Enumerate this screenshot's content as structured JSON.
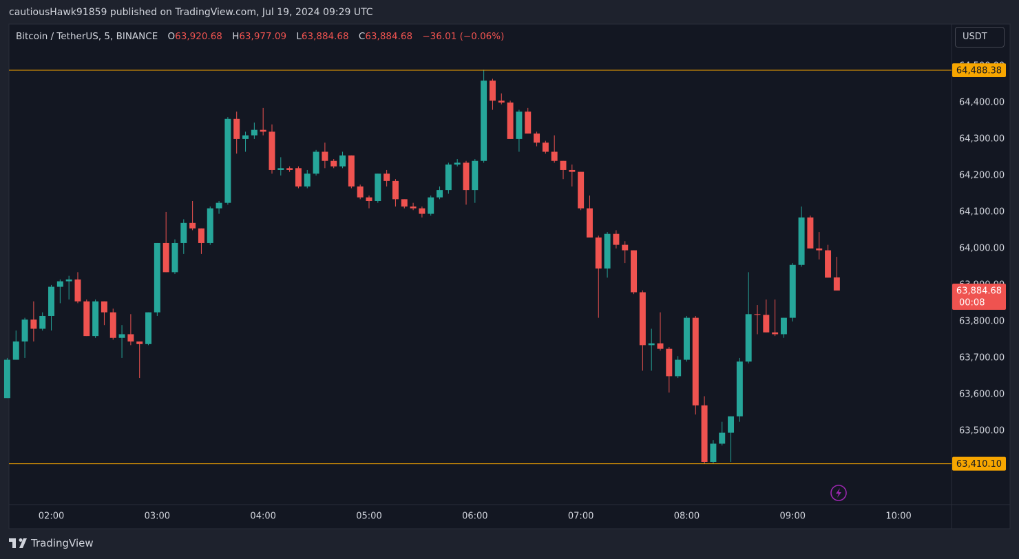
{
  "header": {
    "byline": "cautiousHawk91859 published on TradingView.com, Jul 19, 2024 09:29 UTC"
  },
  "legend": {
    "symbol": "Bitcoin / TetherUS, 5, BINANCE",
    "open_key": "O",
    "open": "63,920.68",
    "high_key": "H",
    "high": "63,977.09",
    "low_key": "L",
    "low": "63,884.68",
    "close_key": "C",
    "close": "63,884.68",
    "change": "−36.01 (−0.06%)"
  },
  "currency_button": "USDT",
  "footer": {
    "brand": "TradingView"
  },
  "chart_data": {
    "type": "candlestick",
    "up_color": "#26a69a",
    "down_color": "#ef5350",
    "grid": true,
    "x": [
      95,
      100,
      105,
      110,
      115,
      120,
      125,
      130,
      135,
      140,
      145,
      150,
      155,
      160,
      165,
      170,
      175,
      180,
      185,
      190,
      195,
      200,
      205,
      210,
      215,
      220,
      225,
      230,
      235,
      240,
      245,
      250,
      255,
      260,
      265,
      270,
      275,
      280,
      285,
      290,
      295,
      300,
      305,
      310,
      315,
      320,
      325,
      330,
      335,
      340,
      345,
      350,
      355,
      360,
      365,
      370,
      375,
      380,
      385,
      390,
      395,
      400,
      405,
      410,
      415,
      420,
      425,
      430,
      435,
      440,
      445,
      450,
      455,
      460,
      465,
      470,
      475,
      480,
      485,
      490,
      495,
      500,
      505,
      510,
      515,
      520,
      525,
      530,
      535,
      540,
      545,
      550,
      555,
      560,
      565
    ],
    "open": [
      63590,
      63695,
      63745,
      63805,
      63780,
      63815,
      63895,
      63910,
      63915,
      63855,
      63760,
      63855,
      63825,
      63755,
      63765,
      63745,
      63738,
      63825,
      64015,
      63935,
      64015,
      64070,
      64055,
      64015,
      64110,
      64125,
      64355,
      64300,
      64310,
      64325,
      64320,
      64215,
      64220,
      64220,
      64170,
      64205,
      64265,
      64240,
      64225,
      64255,
      64170,
      64140,
      64130,
      64205,
      64185,
      64135,
      64115,
      64110,
      64095,
      64140,
      64160,
      64230,
      64235,
      64160,
      64240,
      64460,
      64405,
      64400,
      64300,
      64375,
      64315,
      64290,
      64265,
      64240,
      64215,
      64210,
      64110,
      64030,
      63945,
      64040,
      64010,
      63995,
      63880,
      63735,
      63740,
      63725,
      63650,
      63695,
      63810,
      63570,
      63415,
      63465,
      63495,
      63540,
      63690,
      63820,
      63818,
      63770,
      63765,
      63810,
      63955,
      64085,
      64000,
      63995,
      63920.68
    ],
    "high": [
      63700,
      63775,
      63810,
      63855,
      63825,
      63900,
      63915,
      63925,
      63935,
      63860,
      63860,
      63855,
      63835,
      63790,
      63820,
      63745,
      63825,
      64015,
      64100,
      64025,
      64080,
      64130,
      64055,
      64115,
      64130,
      64360,
      64375,
      64320,
      64345,
      64385,
      64340,
      64250,
      64225,
      64225,
      64215,
      64270,
      64290,
      64245,
      64265,
      64255,
      64175,
      64145,
      64205,
      64215,
      64190,
      64135,
      64125,
      64115,
      64145,
      64170,
      64235,
      64245,
      64240,
      64245,
      64490,
      64465,
      64425,
      64405,
      64380,
      64385,
      64320,
      64295,
      64310,
      64240,
      64230,
      64210,
      64145,
      64035,
      64045,
      64050,
      64020,
      63995,
      63885,
      63780,
      63825,
      63730,
      63705,
      63815,
      63815,
      63595,
      63475,
      63525,
      63540,
      63700,
      63935,
      63845,
      63860,
      63860,
      63810,
      63960,
      64115,
      64090,
      64045,
      64010,
      63977.09
    ],
    "low": [
      63590,
      63695,
      63700,
      63745,
      63775,
      63775,
      63850,
      63860,
      63850,
      63760,
      63755,
      63790,
      63750,
      63700,
      63735,
      63645,
      63735,
      63815,
      63935,
      63930,
      63985,
      64050,
      63985,
      64010,
      64095,
      64120,
      64260,
      64265,
      64300,
      64310,
      64205,
      64200,
      64210,
      64165,
      64165,
      64200,
      64220,
      64220,
      64220,
      64165,
      64135,
      64110,
      64125,
      64170,
      64115,
      64110,
      64105,
      64085,
      64090,
      64135,
      64150,
      64225,
      64120,
      64125,
      64235,
      64380,
      64395,
      64300,
      64265,
      64315,
      64280,
      64260,
      64235,
      64190,
      64170,
      64105,
      64030,
      63810,
      63920,
      64000,
      63960,
      63875,
      63665,
      63665,
      63720,
      63605,
      63645,
      63690,
      63545,
      63410,
      63410,
      63460,
      63415,
      63525,
      63685,
      63765,
      63770,
      63760,
      63755,
      63800,
      63950,
      64000,
      63970,
      63920,
      63884.68
    ],
    "close": [
      63695,
      63745,
      63805,
      63780,
      63815,
      63895,
      63910,
      63915,
      63855,
      63760,
      63855,
      63825,
      63755,
      63765,
      63745,
      63738,
      63825,
      64015,
      63935,
      64015,
      64070,
      64055,
      64015,
      64110,
      64125,
      64355,
      64300,
      64310,
      64325,
      64320,
      64215,
      64220,
      64215,
      64170,
      64205,
      64265,
      64240,
      64225,
      64255,
      64170,
      64140,
      64130,
      64205,
      64185,
      64135,
      64115,
      64110,
      64095,
      64140,
      64160,
      64230,
      64235,
      64160,
      64240,
      64460,
      64405,
      64400,
      64300,
      64375,
      64315,
      64290,
      64265,
      64240,
      64215,
      64210,
      64110,
      64030,
      63945,
      64040,
      64010,
      63995,
      63880,
      63735,
      63740,
      63725,
      63650,
      63695,
      63810,
      63570,
      63415,
      63465,
      63495,
      63540,
      63690,
      63820,
      63818,
      63770,
      63765,
      63810,
      63955,
      64085,
      64000,
      63995,
      63920,
      63884.68
    ],
    "xlim": [
      96,
      630
    ],
    "xticks": [
      {
        "value": 120,
        "label": "02:00"
      },
      {
        "value": 180,
        "label": "03:00"
      },
      {
        "value": 240,
        "label": "04:00"
      },
      {
        "value": 300,
        "label": "05:00"
      },
      {
        "value": 360,
        "label": "06:00"
      },
      {
        "value": 420,
        "label": "07:00"
      },
      {
        "value": 480,
        "label": "08:00"
      },
      {
        "value": 540,
        "label": "09:00"
      },
      {
        "value": 600,
        "label": "10:00"
      }
    ],
    "ylim": [
      63298,
      64613
    ],
    "yticks": [
      {
        "value": 63500,
        "label": "63,500.00"
      },
      {
        "value": 63600,
        "label": "63,600.00"
      },
      {
        "value": 63700,
        "label": "63,700.00"
      },
      {
        "value": 63800,
        "label": "63,800.00"
      },
      {
        "value": 63900,
        "label": "63,900.00"
      },
      {
        "value": 64000,
        "label": "64,000.00"
      },
      {
        "value": 64100,
        "label": "64,100.00"
      },
      {
        "value": 64200,
        "label": "64,200.00"
      },
      {
        "value": 64300,
        "label": "64,300.00"
      },
      {
        "value": 64400,
        "label": "64,400.00"
      },
      {
        "value": 64500,
        "label": "64,500.00"
      }
    ],
    "price_lines": [
      {
        "value": 64488.38,
        "label": "64,488.38",
        "color": "#f7a600"
      },
      {
        "value": 63410.1,
        "label": "63,410.10",
        "color": "#f7a600"
      }
    ],
    "last_price": {
      "value": 63884.68,
      "label": "63,884.68",
      "countdown": "00:08",
      "color": "#ef5350"
    }
  }
}
